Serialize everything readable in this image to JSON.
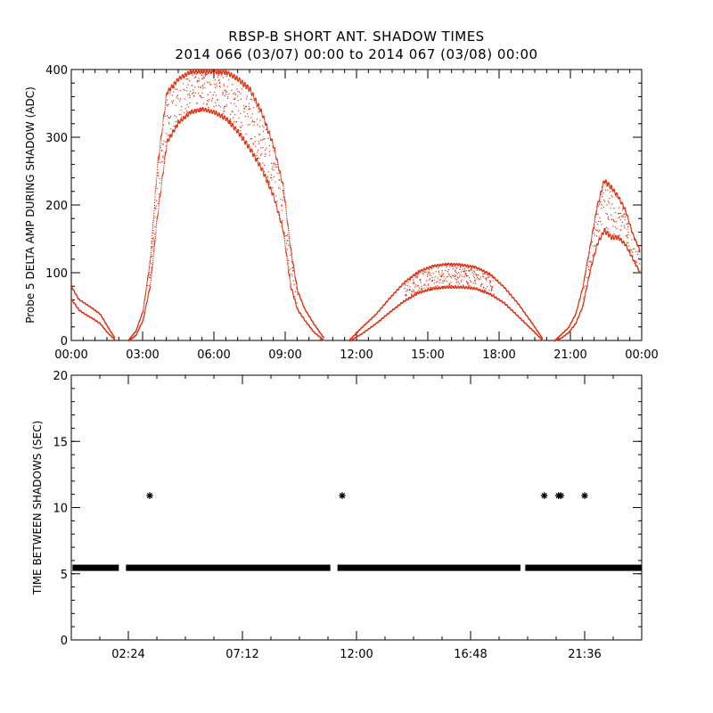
{
  "title": "RBSP-B SHORT ANT. SHADOW TIMES",
  "subtitle": "2014 066 (03/07) 00:00 to 2014 067 (03/08) 00:00",
  "colors": {
    "top_series": "#e03010",
    "bottom_series": "#000000",
    "axis": "#000000",
    "background": "#ffffff"
  },
  "chart_data": [
    {
      "type": "scatter",
      "ylabel": "Probe 5 DELTA AMP DURING SHADOW (ADC)",
      "xlabel": "",
      "xlim": [
        0,
        24
      ],
      "ylim": [
        0,
        400
      ],
      "x_tick_labels": [
        "00:00",
        "03:00",
        "06:00",
        "09:00",
        "12:00",
        "15:00",
        "18:00",
        "21:00",
        "00:00"
      ],
      "x_ticks_hours": [
        0,
        3,
        6,
        9,
        12,
        15,
        18,
        21,
        24
      ],
      "y_ticks": [
        0,
        100,
        200,
        300,
        400
      ],
      "grid": false,
      "marker": "dot",
      "series": [
        {
          "segments": [
            {
              "x": [
                0.0,
                0.3,
                0.6,
                0.9,
                1.2,
                1.5,
                1.8
              ],
              "upper": [
                80,
                62,
                55,
                48,
                40,
                22,
                5
              ],
              "lower": [
                60,
                45,
                38,
                32,
                25,
                12,
                2
              ]
            },
            {
              "x": [
                2.4,
                2.7,
                3.0,
                3.3,
                3.6,
                4.0,
                4.5,
                5.0,
                5.5,
                6.0,
                6.5,
                7.0,
                7.5,
                8.0,
                8.5,
                8.9,
                9.2,
                9.5,
                9.8,
                10.2,
                10.6
              ],
              "upper": [
                2,
                15,
                45,
                120,
                260,
                370,
                390,
                400,
                400,
                400,
                400,
                390,
                375,
                340,
                290,
                230,
                140,
                75,
                48,
                25,
                5
              ],
              "lower": [
                0,
                8,
                30,
                80,
                180,
                290,
                320,
                335,
                340,
                335,
                325,
                305,
                280,
                250,
                210,
                160,
                80,
                45,
                30,
                12,
                1
              ]
            },
            {
              "x": [
                11.7,
                12.2,
                12.8,
                13.4,
                14.0,
                14.6,
                15.2,
                15.8,
                16.4,
                17.0,
                17.6,
                18.2,
                18.8,
                19.4,
                19.8
              ],
              "upper": [
                2,
                20,
                40,
                65,
                88,
                104,
                112,
                115,
                114,
                110,
                100,
                80,
                55,
                25,
                4
              ],
              "lower": [
                0,
                10,
                25,
                42,
                58,
                70,
                76,
                78,
                78,
                76,
                68,
                55,
                35,
                15,
                1
              ]
            },
            {
              "x": [
                20.3,
                20.6,
                20.9,
                21.2,
                21.5,
                21.8,
                22.1,
                22.4,
                22.7,
                23.0,
                23.3,
                23.6,
                23.9
              ],
              "upper": [
                0,
                10,
                20,
                40,
                80,
                140,
                200,
                240,
                230,
                215,
                195,
                160,
                135
              ],
              "lower": [
                0,
                4,
                12,
                25,
                50,
                100,
                140,
                160,
                150,
                150,
                140,
                120,
                100
              ]
            }
          ]
        }
      ]
    },
    {
      "type": "scatter",
      "ylabel": "TIME BETWEEN SHADOWS (SEC)",
      "xlabel": "",
      "xlim": [
        0,
        24
      ],
      "ylim": [
        0,
        20
      ],
      "x_tick_labels": [
        "02:24",
        "07:12",
        "12:00",
        "16:48",
        "21:36"
      ],
      "x_ticks_hours": [
        2.4,
        7.2,
        12.0,
        16.8,
        21.6
      ],
      "y_ticks": [
        0,
        5,
        10,
        15,
        20
      ],
      "grid": false,
      "marker": "asterisk",
      "series": [
        {
          "baseline_value": 5.45,
          "baseline_ranges": [
            [
              0.05,
              2.0
            ],
            [
              2.3,
              10.9
            ],
            [
              11.2,
              18.9
            ],
            [
              19.1,
              24.0
            ]
          ],
          "outliers": [
            {
              "x": 3.3,
              "y": 10.9
            },
            {
              "x": 11.4,
              "y": 10.9
            },
            {
              "x": 19.9,
              "y": 10.9
            },
            {
              "x": 20.5,
              "y": 10.9
            },
            {
              "x": 20.6,
              "y": 10.9
            },
            {
              "x": 21.6,
              "y": 10.9
            }
          ]
        }
      ]
    }
  ]
}
